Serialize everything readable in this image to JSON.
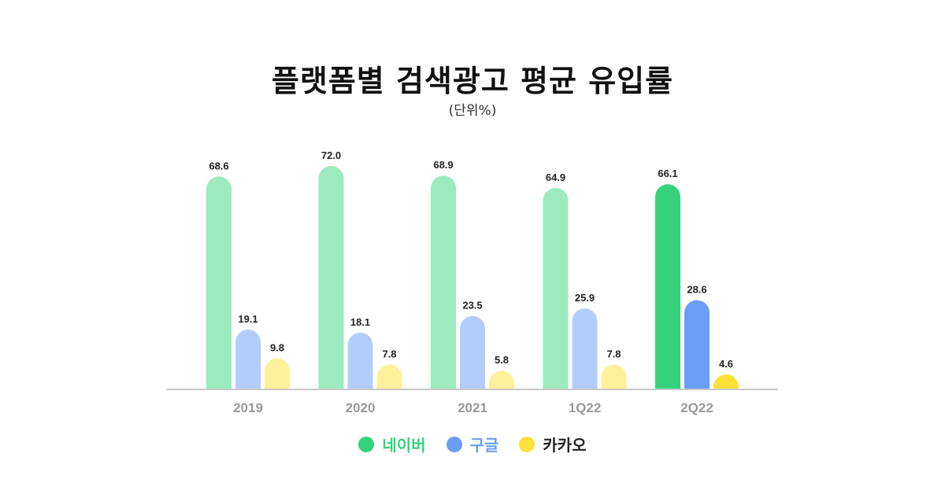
{
  "chart_data": {
    "type": "bar",
    "title": "플랫폼별 검색광고 평균 유입률",
    "subtitle": "(단위%)",
    "categories": [
      "2019",
      "2020",
      "2021",
      "1Q22",
      "2Q22"
    ],
    "series": [
      {
        "name": "네이버",
        "values": [
          68.6,
          72.0,
          68.9,
          64.9,
          66.1
        ],
        "color": "#35d27b",
        "faded_color": "#9deabf"
      },
      {
        "name": "구글",
        "values": [
          19.1,
          18.1,
          23.5,
          25.9,
          28.6
        ],
        "color": "#6a9ef5",
        "faded_color": "#b3cdfb"
      },
      {
        "name": "카카오",
        "values": [
          9.8,
          7.8,
          5.8,
          7.8,
          4.6
        ],
        "color": "#fce13a",
        "faded_color": "#fdf29b"
      }
    ],
    "highlighted_category": "2Q22",
    "legend_text_colors": [
      "#35d27b",
      "#6a9ef5",
      "#222222"
    ],
    "grid": false,
    "legend_position": "bottom"
  }
}
